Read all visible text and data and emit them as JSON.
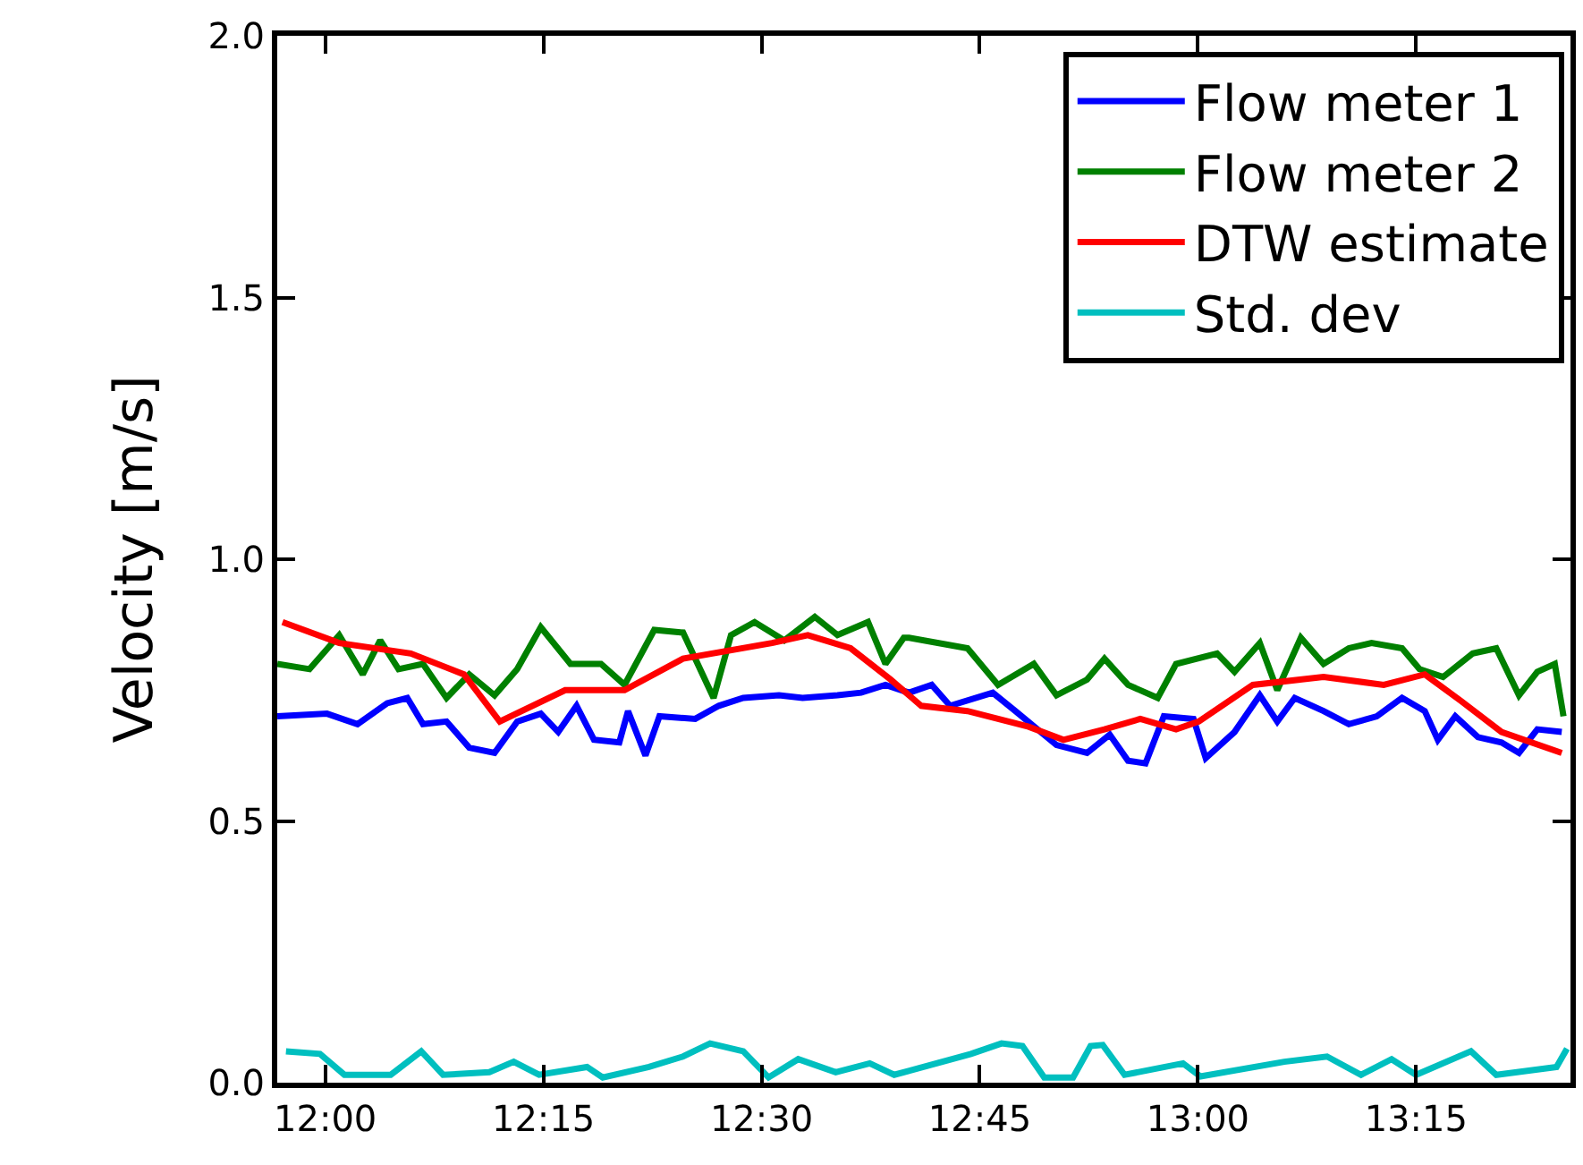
{
  "chart_data": {
    "type": "line",
    "ylabel": "Velocity [m/s]",
    "xlim": [
      11.945,
      13.427
    ],
    "ylim": [
      0,
      2.0
    ],
    "xticks": [
      {
        "value": 12,
        "label": "12:00"
      },
      {
        "value": 12.25,
        "label": "12:15"
      },
      {
        "value": 12.5,
        "label": "12:30"
      },
      {
        "value": 12.75,
        "label": "12:45"
      },
      {
        "value": 13,
        "label": "13:00"
      },
      {
        "value": 13.25,
        "label": "13:15"
      }
    ],
    "yticks": [
      {
        "value": 0,
        "label": "0.0"
      },
      0.5,
      {
        "value": 1,
        "label": "1.0"
      },
      1.5,
      {
        "value": 2,
        "label": "2.0"
      }
    ],
    "grid": false,
    "legend": "top right",
    "marker": "none",
    "line_style": "solid",
    "series": [
      {
        "name": "Flow meter 1",
        "color": "#0000ff",
        "x": [
          11.945,
          12.002,
          12.037,
          12.071,
          12.094,
          12.112,
          12.139,
          12.165,
          12.194,
          12.22,
          12.247,
          12.267,
          12.288,
          12.308,
          12.337,
          12.347,
          12.367,
          12.383,
          12.424,
          12.451,
          12.479,
          12.52,
          12.547,
          12.587,
          12.614,
          12.642,
          12.669,
          12.695,
          12.716,
          12.765,
          12.791,
          12.838,
          12.873,
          12.899,
          12.92,
          12.94,
          12.961,
          12.995,
          13.009,
          13.042,
          13.071,
          13.091,
          13.111,
          13.144,
          13.173,
          13.205,
          13.234,
          13.26,
          13.275,
          13.295,
          13.321,
          13.348,
          13.368,
          13.389,
          13.417
        ],
        "values": [
          0.7,
          0.705,
          0.685,
          0.725,
          0.735,
          0.685,
          0.69,
          0.64,
          0.63,
          0.69,
          0.705,
          0.67,
          0.72,
          0.655,
          0.65,
          0.71,
          0.625,
          0.7,
          0.695,
          0.72,
          0.735,
          0.74,
          0.735,
          0.74,
          0.745,
          0.76,
          0.745,
          0.76,
          0.72,
          0.745,
          0.71,
          0.645,
          0.63,
          0.665,
          0.615,
          0.61,
          0.7,
          0.695,
          0.62,
          0.67,
          0.74,
          0.69,
          0.735,
          0.71,
          0.685,
          0.7,
          0.735,
          0.71,
          0.655,
          0.7,
          0.66,
          0.65,
          0.63,
          0.675,
          0.67
        ]
      },
      {
        "name": "Flow meter 2",
        "color": "#008000",
        "x": [
          11.945,
          11.982,
          12.016,
          12.043,
          12.063,
          12.084,
          12.112,
          12.139,
          12.165,
          12.194,
          12.22,
          12.247,
          12.281,
          12.316,
          12.343,
          12.377,
          12.41,
          12.445,
          12.465,
          12.492,
          12.526,
          12.561,
          12.587,
          12.622,
          12.642,
          12.663,
          12.669,
          12.736,
          12.771,
          12.812,
          12.838,
          12.873,
          12.893,
          12.92,
          12.954,
          12.975,
          13.022,
          13.042,
          13.071,
          13.091,
          13.118,
          13.144,
          13.173,
          13.199,
          13.234,
          13.254,
          13.281,
          13.315,
          13.342,
          13.368,
          13.389,
          13.409,
          13.419
        ],
        "values": [
          0.8,
          0.79,
          0.855,
          0.78,
          0.845,
          0.79,
          0.8,
          0.735,
          0.78,
          0.74,
          0.79,
          0.87,
          0.8,
          0.8,
          0.76,
          0.865,
          0.86,
          0.735,
          0.855,
          0.88,
          0.845,
          0.89,
          0.855,
          0.88,
          0.8,
          0.85,
          0.85,
          0.83,
          0.76,
          0.8,
          0.74,
          0.77,
          0.81,
          0.76,
          0.735,
          0.8,
          0.82,
          0.785,
          0.84,
          0.75,
          0.85,
          0.8,
          0.83,
          0.84,
          0.83,
          0.79,
          0.775,
          0.82,
          0.83,
          0.74,
          0.785,
          0.8,
          0.7
        ]
      },
      {
        "name": "DTW estimate",
        "color": "#ff0000",
        "x": [
          11.951,
          12.016,
          12.098,
          12.159,
          12.2,
          12.275,
          12.343,
          12.41,
          12.512,
          12.553,
          12.602,
          12.648,
          12.683,
          12.736,
          12.806,
          12.846,
          12.893,
          12.934,
          12.975,
          13.001,
          13.063,
          13.144,
          13.213,
          13.26,
          13.301,
          13.348,
          13.417
        ],
        "values": [
          0.88,
          0.84,
          0.82,
          0.78,
          0.69,
          0.75,
          0.75,
          0.81,
          0.84,
          0.855,
          0.83,
          0.77,
          0.72,
          0.71,
          0.68,
          0.655,
          0.675,
          0.695,
          0.675,
          0.69,
          0.76,
          0.775,
          0.76,
          0.78,
          0.73,
          0.67,
          0.63
        ]
      },
      {
        "name": "Std. dev",
        "color": "#00bfbf",
        "x": [
          11.955,
          11.994,
          12.022,
          12.075,
          12.11,
          12.135,
          12.188,
          12.216,
          12.245,
          12.3,
          12.318,
          12.371,
          12.41,
          12.441,
          12.479,
          12.508,
          12.542,
          12.585,
          12.624,
          12.652,
          12.74,
          12.775,
          12.799,
          12.824,
          12.857,
          12.877,
          12.891,
          12.916,
          12.983,
          13.003,
          13.099,
          13.148,
          13.187,
          13.222,
          13.25,
          13.313,
          13.342,
          13.411,
          13.423
        ],
        "values": [
          0.06,
          0.055,
          0.015,
          0.015,
          0.06,
          0.015,
          0.02,
          0.04,
          0.015,
          0.03,
          0.01,
          0.03,
          0.05,
          0.075,
          0.06,
          0.01,
          0.045,
          0.02,
          0.037,
          0.015,
          0.055,
          0.075,
          0.07,
          0.01,
          0.01,
          0.07,
          0.072,
          0.015,
          0.037,
          0.012,
          0.04,
          0.05,
          0.015,
          0.045,
          0.015,
          0.06,
          0.015,
          0.03,
          0.065
        ]
      }
    ]
  }
}
